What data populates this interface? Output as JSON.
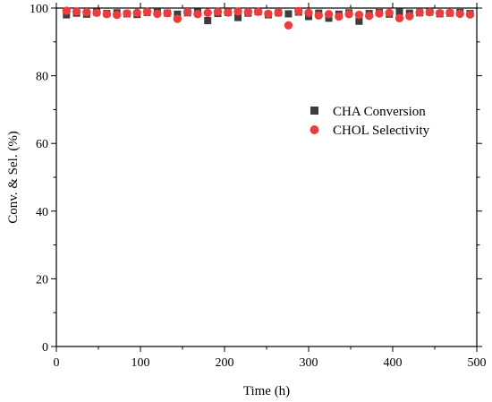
{
  "chart_data": {
    "type": "scatter",
    "title": "",
    "xlabel": "Time (h)",
    "ylabel": "Conv. & Sel. (%)",
    "xlim": [
      0,
      500
    ],
    "ylim": [
      0,
      100
    ],
    "xticks": [
      0,
      100,
      200,
      300,
      400,
      500
    ],
    "yticks": [
      0,
      20,
      40,
      60,
      80,
      100
    ],
    "grid": false,
    "legend_position": "center-right",
    "series": [
      {
        "name": "CHA Conversion",
        "marker": "square",
        "color": "#3d3d3d",
        "x": [
          12,
          24,
          36,
          48,
          60,
          72,
          84,
          96,
          108,
          120,
          132,
          144,
          156,
          168,
          180,
          192,
          204,
          216,
          228,
          240,
          252,
          264,
          276,
          288,
          300,
          312,
          324,
          336,
          348,
          360,
          372,
          384,
          396,
          408,
          420,
          432,
          444,
          456,
          468,
          480,
          492
        ],
        "y": [
          98.0,
          98.5,
          98.2,
          98.8,
          98.4,
          98.6,
          98.3,
          98.1,
          98.7,
          98.9,
          98.5,
          98.2,
          98.6,
          98.8,
          96.3,
          98.4,
          98.7,
          97.2,
          98.5,
          98.9,
          98.0,
          98.6,
          98.3,
          98.8,
          97.5,
          98.5,
          97.0,
          98.2,
          98.6,
          96.1,
          98.4,
          98.7,
          98.2,
          98.9,
          98.5,
          98.6,
          98.8,
          98.3,
          98.5,
          98.7,
          98.4
        ]
      },
      {
        "name": "CHOL Selectivity",
        "marker": "circle",
        "color": "#ee3b3b",
        "x": [
          12,
          24,
          36,
          48,
          60,
          72,
          84,
          96,
          108,
          120,
          132,
          144,
          156,
          168,
          180,
          192,
          204,
          216,
          228,
          240,
          252,
          264,
          276,
          288,
          300,
          312,
          324,
          336,
          348,
          360,
          372,
          384,
          396,
          408,
          420,
          432,
          444,
          456,
          468,
          480,
          492
        ],
        "y": [
          99.2,
          99.0,
          98.8,
          98.6,
          98.2,
          98.0,
          98.4,
          98.6,
          98.9,
          98.3,
          98.5,
          96.8,
          98.8,
          98.2,
          98.6,
          98.9,
          98.7,
          99.0,
          98.8,
          98.9,
          98.3,
          98.6,
          94.9,
          99.1,
          98.6,
          97.8,
          98.2,
          97.5,
          98.2,
          98.0,
          97.7,
          98.4,
          98.6,
          97.0,
          97.6,
          98.7,
          98.8,
          98.5,
          98.6,
          98.3,
          98.1
        ]
      }
    ]
  }
}
